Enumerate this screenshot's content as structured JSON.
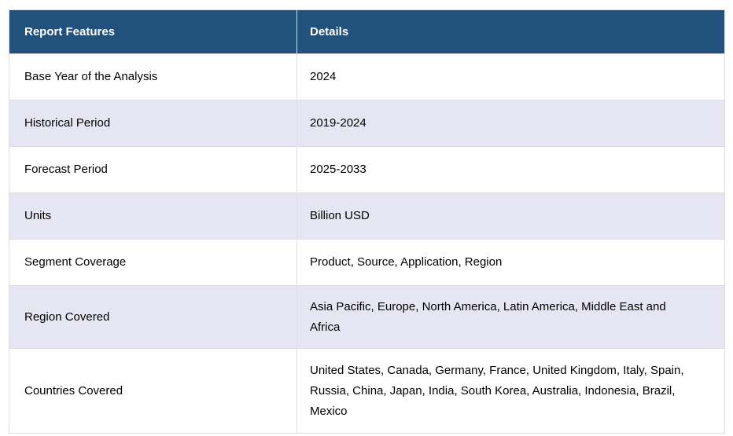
{
  "table": {
    "header": {
      "feature_label": "Report Features",
      "details_label": "Details"
    },
    "rows": [
      {
        "feature": "Base Year of the Analysis",
        "details": "2024"
      },
      {
        "feature": "Historical Period",
        "details": "2019-2024"
      },
      {
        "feature": "Forecast Period",
        "details": "2025-2033"
      },
      {
        "feature": "Units",
        "details": "Billion USD"
      },
      {
        "feature": "Segment Coverage",
        "details": "Product, Source, Application, Region"
      },
      {
        "feature": "Region Covered",
        "details": " Asia Pacific, Europe, North America, Latin America, Middle East and Africa"
      },
      {
        "feature": "Countries Covered",
        "details": "United States, Canada, Germany, France, United Kingdom, Italy, Spain, Russia, China, Japan, India, South Korea, Australia, Indonesia, Brazil, Mexico"
      }
    ],
    "colors": {
      "header_bg": "#21517c",
      "header_text": "#ffffff",
      "row_bg": "#ffffff",
      "row_alt_bg": "#e6e6f2",
      "border": "#dcdde8",
      "text": "#000000"
    }
  }
}
